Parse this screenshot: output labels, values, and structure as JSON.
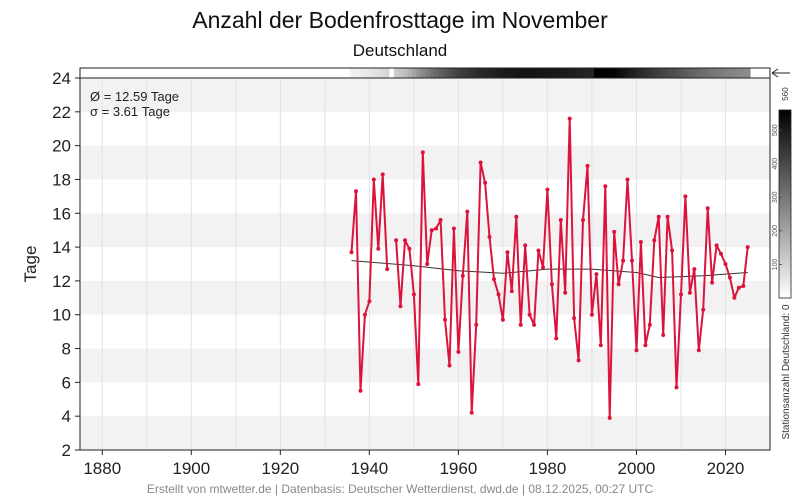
{
  "chart_data": {
    "type": "line",
    "title": "Anzahl der Bodenfrosttage im November",
    "subtitle": "Deutschland",
    "ylabel": "Tage",
    "xlabel": "",
    "xlim": [
      1875,
      2030
    ],
    "ylim": [
      2,
      24
    ],
    "x_ticks": [
      1880,
      1900,
      1920,
      1940,
      1960,
      1980,
      2000,
      2020
    ],
    "y_ticks": [
      2,
      4,
      6,
      8,
      10,
      12,
      14,
      16,
      18,
      20,
      22,
      24
    ],
    "grid": true,
    "stats": {
      "mean": "Ø = 12.59 Tage",
      "sd": "σ = 3.61 Tage"
    },
    "colors": {
      "series": "#dc143c",
      "trend": "#333333",
      "band": "#f2f2f2"
    },
    "series": [
      {
        "x": [
          1936,
          1937,
          1938,
          1939,
          1940,
          1941,
          1942,
          1943,
          1944,
          1945,
          1946,
          1947,
          1948,
          1949,
          1950,
          1951,
          1952,
          1953,
          1954,
          1955,
          1956,
          1957,
          1958,
          1959,
          1960,
          1961,
          1962,
          1963,
          1964,
          1965,
          1966,
          1967,
          1968,
          1969,
          1970,
          1971,
          1972,
          1973,
          1974,
          1975,
          1976,
          1977,
          1978,
          1979,
          1980,
          1981,
          1982,
          1983,
          1984,
          1985,
          1986,
          1987,
          1988,
          1989,
          1990,
          1991,
          1992,
          1993,
          1994,
          1995,
          1996,
          1997,
          1998,
          1999,
          2000,
          2001,
          2002,
          2003,
          2004,
          2005,
          2006,
          2007,
          2008,
          2009,
          2010,
          2011,
          2012,
          2013,
          2014,
          2015,
          2016,
          2017,
          2018,
          2019,
          2020,
          2021,
          2022,
          2023,
          2024,
          2025
        ],
        "y": [
          13.7,
          17.3,
          5.5,
          10.0,
          10.8,
          18.0,
          13.9,
          18.3,
          12.7,
          null,
          14.4,
          10.5,
          14.4,
          13.9,
          11.2,
          5.9,
          19.6,
          13.0,
          15.0,
          15.1,
          15.6,
          9.7,
          7.0,
          15.1,
          7.8,
          12.3,
          16.1,
          4.2,
          9.4,
          19.0,
          17.8,
          14.6,
          12.1,
          11.2,
          9.7,
          13.7,
          11.4,
          15.8,
          9.4,
          14.1,
          10.0,
          9.4,
          13.8,
          12.8,
          17.4,
          11.8,
          8.6,
          15.6,
          11.3,
          21.6,
          9.8,
          7.3,
          15.6,
          18.8,
          10.0,
          12.4,
          8.2,
          17.6,
          3.9,
          14.9,
          11.8,
          13.2,
          18.0,
          13.2,
          7.9,
          14.3,
          8.2,
          9.4,
          14.4,
          15.8,
          8.8,
          15.8,
          13.8,
          5.7,
          11.2,
          17.0,
          11.3,
          12.7,
          7.9,
          10.3,
          16.3,
          11.9,
          14.1,
          13.6,
          13.0,
          12.2,
          11.0,
          11.6,
          11.7,
          14.0
        ]
      }
    ],
    "trend": {
      "x": [
        1936,
        1950,
        1960,
        1970,
        1980,
        1990,
        2000,
        2005,
        2015,
        2025
      ],
      "y": [
        13.2,
        12.9,
        12.6,
        12.45,
        12.7,
        12.7,
        12.5,
        12.2,
        12.3,
        12.5
      ]
    },
    "stations": {
      "label": "Stationsanzahl Deutschland: 0",
      "scale_ticks": [
        100,
        200,
        300,
        400,
        500
      ],
      "scale_max": "560",
      "x": [
        1936,
        1940,
        1944,
        1945,
        1946,
        1948,
        1950,
        1952,
        1955,
        1960,
        1965,
        1970,
        1975,
        1980,
        1985,
        1990,
        1991,
        1995,
        2000,
        2005,
        2010,
        2015,
        2020,
        2025
      ],
      "count": [
        30,
        50,
        90,
        0,
        110,
        140,
        200,
        260,
        330,
        420,
        470,
        500,
        520,
        510,
        500,
        480,
        560,
        550,
        480,
        420,
        370,
        320,
        280,
        250
      ]
    }
  },
  "footer": "Erstellt von mtwetter.de | Datenbasis: Deutscher Wetterdienst, dwd.de | 08.12.2025, 00:27 UTC"
}
